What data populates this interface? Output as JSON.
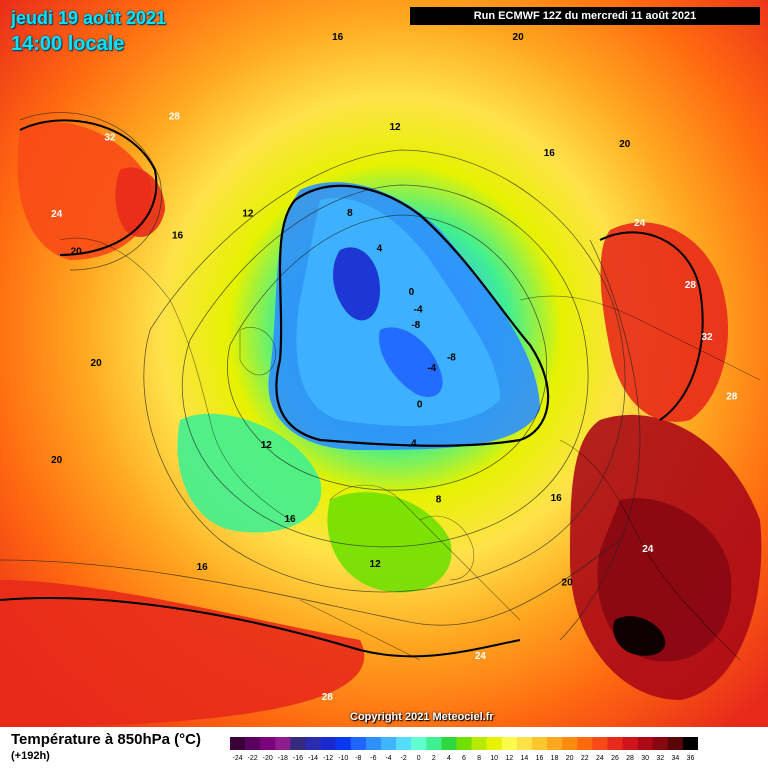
{
  "header": {
    "date": "jeudi 19 août 2021",
    "time": "14:00 locale",
    "run": "Run ECMWF 12Z du mercredi 11 août 2021"
  },
  "copyright": "Copyright 2021 Meteociel.fr",
  "footer": {
    "title": "Température à 850hPa (°C)",
    "subtitle": "(+192h)"
  },
  "legend": {
    "steps": [
      -24,
      -22,
      -20,
      -18,
      -16,
      -14,
      -12,
      -10,
      -8,
      -6,
      -4,
      -2,
      0,
      2,
      4,
      6,
      8,
      10,
      12,
      14,
      16,
      18,
      20,
      22,
      24,
      26,
      28,
      30,
      32,
      34,
      36
    ],
    "labels": [
      "-24",
      "-22",
      "-20",
      "-18",
      "-16",
      "-14",
      "-12",
      "-10",
      "-8",
      "-6",
      "-4",
      "-2",
      "0",
      "2",
      "4",
      "6",
      "8",
      "10",
      "12",
      "14",
      "16",
      "18",
      "20",
      "22",
      "24",
      "26",
      "28",
      "30",
      "32",
      "34",
      "36"
    ],
    "colors": [
      "#3a003a",
      "#5a0060",
      "#7a0080",
      "#8e1c8e",
      "#342a80",
      "#2b2bb0",
      "#1a2ad0",
      "#0a38f0",
      "#1f66ff",
      "#2e8fff",
      "#3fb4ff",
      "#55dcff",
      "#60ffd0",
      "#40f090",
      "#30d840",
      "#70e000",
      "#b8ea00",
      "#e6f200",
      "#fffb4c",
      "#ffe24a",
      "#ffc62e",
      "#ffa820",
      "#ff8c10",
      "#ff6a10",
      "#f84a16",
      "#e82a1a",
      "#d0141c",
      "#ac0a16",
      "#880812",
      "#5a0508",
      "#000000"
    ]
  },
  "map": {
    "isotherm_labels": [
      {
        "text": "16",
        "lon": -20,
        "lat": 55
      },
      {
        "text": "12",
        "lon": -40,
        "lat": 62
      },
      {
        "text": "20",
        "lon": -95,
        "lat": 35
      },
      {
        "text": "20",
        "lon": -75,
        "lat": 40
      },
      {
        "text": "16",
        "lon": -105,
        "lat": 50
      },
      {
        "text": "12",
        "lon": -120,
        "lat": 58
      },
      {
        "text": "8",
        "lon": -150,
        "lat": 68
      },
      {
        "text": "4",
        "lon": -160,
        "lat": 75
      },
      {
        "text": "0",
        "lon": 170,
        "lat": 82
      },
      {
        "text": "-4",
        "lon": 150,
        "lat": 84
      },
      {
        "text": "-8",
        "lon": 130,
        "lat": 86
      },
      {
        "text": "-4",
        "lon": 60,
        "lat": 82
      },
      {
        "text": "-8",
        "lon": 80,
        "lat": 80
      },
      {
        "text": "0",
        "lon": 30,
        "lat": 78
      },
      {
        "text": "4",
        "lon": 20,
        "lat": 72
      },
      {
        "text": "8",
        "lon": 25,
        "lat": 62
      },
      {
        "text": "12",
        "lon": 5,
        "lat": 52
      },
      {
        "text": "16",
        "lon": 55,
        "lat": 52
      },
      {
        "text": "20",
        "lon": 45,
        "lat": 40
      },
      {
        "text": "24",
        "lon": 25,
        "lat": 35
      },
      {
        "text": "28",
        "lon": 0,
        "lat": 25
      },
      {
        "text": "24",
        "lon": 60,
        "lat": 35
      },
      {
        "text": "28",
        "lon": 90,
        "lat": 33
      },
      {
        "text": "32",
        "lon": 100,
        "lat": 38
      },
      {
        "text": "28",
        "lon": 110,
        "lat": 40
      },
      {
        "text": "24",
        "lon": 125,
        "lat": 45
      },
      {
        "text": "20",
        "lon": 140,
        "lat": 40
      },
      {
        "text": "16",
        "lon": 150,
        "lat": 50
      },
      {
        "text": "12",
        "lon": -170,
        "lat": 55
      },
      {
        "text": "16",
        "lon": -160,
        "lat": 35
      },
      {
        "text": "20",
        "lon": 170,
        "lat": 30
      },
      {
        "text": "32",
        "lon": -115,
        "lat": 32
      },
      {
        "text": "28",
        "lon": -125,
        "lat": 38
      },
      {
        "text": "24",
        "lon": -100,
        "lat": 30
      },
      {
        "text": "20",
        "lon": -60,
        "lat": 30
      },
      {
        "text": "16",
        "lon": -30,
        "lat": 40
      }
    ]
  }
}
